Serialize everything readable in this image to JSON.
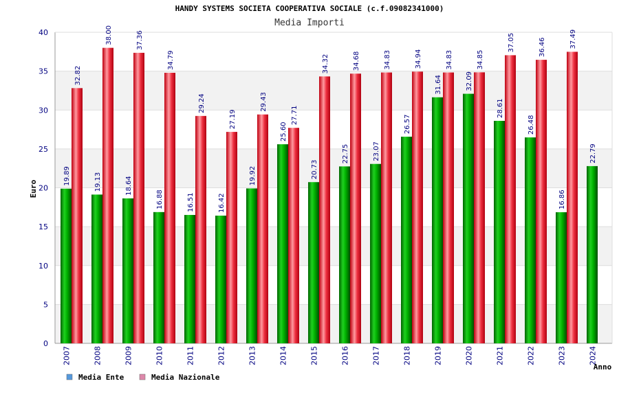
{
  "chart_data": {
    "type": "bar",
    "title": "HANDY SYSTEMS SOCIETA COOPERATIVA SOCIALE (c.f.09082341000)",
    "subtitle": "Media Importi",
    "xlabel": "Anno",
    "ylabel": "Euro",
    "ylim": [
      0,
      40
    ],
    "yticks": [
      0,
      5,
      10,
      15,
      20,
      25,
      30,
      35,
      40
    ],
    "categories": [
      "2007",
      "2008",
      "2009",
      "2010",
      "2011",
      "2012",
      "2013",
      "2014",
      "2015",
      "2016",
      "2017",
      "2018",
      "2019",
      "2020",
      "2021",
      "2022",
      "2023",
      "2024"
    ],
    "series": [
      {
        "name": "Media Ente",
        "color": "#00b000",
        "values": [
          19.89,
          19.13,
          18.64,
          16.88,
          16.51,
          16.42,
          19.92,
          25.6,
          20.73,
          22.75,
          23.07,
          26.57,
          31.64,
          32.09,
          28.61,
          26.48,
          16.86,
          22.79
        ],
        "labels": [
          "19.89",
          "19.13",
          "18.64",
          "16.88",
          "16.51",
          "16.42",
          "19.92",
          "25.60",
          "20.73",
          "22.75",
          "23.07",
          "26.57",
          "31.64",
          "32.09",
          "28.61",
          "26.48",
          "16.86",
          "22.79"
        ]
      },
      {
        "name": "Media Nazionale",
        "color": "#e8202a",
        "values": [
          32.82,
          38.0,
          37.36,
          34.79,
          29.24,
          27.19,
          29.43,
          27.71,
          34.32,
          34.68,
          34.83,
          34.94,
          34.83,
          34.85,
          37.05,
          36.46,
          37.49,
          null
        ],
        "labels": [
          "32.82",
          "38.00",
          "37.36",
          "34.79",
          "29.24",
          "27.19",
          "29.43",
          "27.71",
          "34.32",
          "34.68",
          "34.83",
          "34.94",
          "34.83",
          "34.85",
          "37.05",
          "36.46",
          "37.49",
          ""
        ]
      }
    ],
    "legend": [
      {
        "label": "Media Ente",
        "color": "#5599dd"
      },
      {
        "label": "Media Nazionale",
        "color": "#dd88aa"
      }
    ],
    "grid": true,
    "legend_position": "bottom-left"
  }
}
